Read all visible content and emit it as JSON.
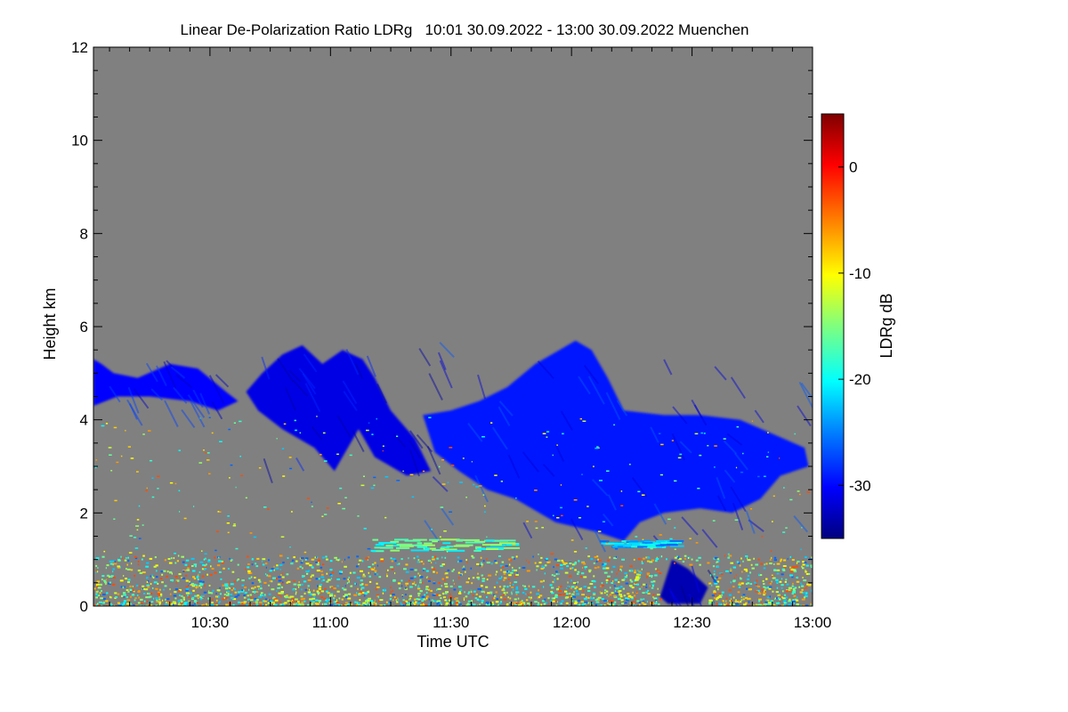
{
  "chart_data": {
    "type": "heatmap",
    "title": "Linear De-Polarization Ratio LDRg   10:01 30.09.2022 - 13:00 30.09.2022 Muenchen",
    "xlabel": "Time UTC",
    "ylabel": "Height km",
    "colorbar_label": "LDRg dB",
    "xlim_minutes": [
      601,
      780
    ],
    "ylim_km": [
      0,
      12
    ],
    "x_ticks": [
      {
        "minutes": 630,
        "label": "10:30"
      },
      {
        "minutes": 660,
        "label": "11:00"
      },
      {
        "minutes": 690,
        "label": "11:30"
      },
      {
        "minutes": 720,
        "label": "12:00"
      },
      {
        "minutes": 750,
        "label": "12:30"
      },
      {
        "minutes": 780,
        "label": "13:00"
      }
    ],
    "y_ticks": [
      {
        "value": 0,
        "label": "0"
      },
      {
        "value": 2,
        "label": "2"
      },
      {
        "value": 4,
        "label": "4"
      },
      {
        "value": 6,
        "label": "6"
      },
      {
        "value": 8,
        "label": "8"
      },
      {
        "value": 10,
        "label": "10"
      },
      {
        "value": 12,
        "label": "12"
      }
    ],
    "colorbar_range_db": [
      -35,
      5
    ],
    "colorbar_ticks": [
      {
        "value": 0,
        "label": "0"
      },
      {
        "value": -10,
        "label": "-10"
      },
      {
        "value": -20,
        "label": "-20"
      },
      {
        "value": -30,
        "label": "-30"
      }
    ],
    "colors": {
      "background": "#808080",
      "colorscale": [
        "#00007f",
        "#0000ff",
        "#007fff",
        "#00ffff",
        "#7fff7f",
        "#ffff00",
        "#ff7f00",
        "#ff0000",
        "#7f0000"
      ]
    },
    "cloud_layers": [
      {
        "name": "upper-layer-1",
        "ldr_db": -30,
        "points": [
          [
            601,
            5.3
          ],
          [
            603,
            5.2
          ],
          [
            606,
            5.0
          ],
          [
            612,
            4.9
          ],
          [
            620,
            5.2
          ],
          [
            627,
            5.1
          ],
          [
            634,
            4.6
          ],
          [
            637,
            4.4
          ],
          [
            632,
            4.2
          ],
          [
            625,
            4.4
          ],
          [
            615,
            4.5
          ],
          [
            607,
            4.5
          ],
          [
            601,
            4.3
          ]
        ]
      },
      {
        "name": "upper-layer-2",
        "ldr_db": -31,
        "points": [
          [
            639,
            4.6
          ],
          [
            643,
            5.0
          ],
          [
            648,
            5.4
          ],
          [
            653,
            5.6
          ],
          [
            658,
            5.2
          ],
          [
            663,
            5.5
          ],
          [
            668,
            5.3
          ],
          [
            671,
            4.9
          ],
          [
            675,
            4.2
          ],
          [
            681,
            3.6
          ],
          [
            685,
            2.9
          ],
          [
            679,
            2.8
          ],
          [
            671,
            3.2
          ],
          [
            667,
            3.8
          ],
          [
            661,
            2.9
          ],
          [
            656,
            3.4
          ],
          [
            648,
            3.8
          ],
          [
            642,
            4.2
          ]
        ]
      },
      {
        "name": "main-layer",
        "ldr_db": -29,
        "points": [
          [
            683,
            4.1
          ],
          [
            690,
            4.2
          ],
          [
            697,
            4.4
          ],
          [
            704,
            4.7
          ],
          [
            711,
            5.2
          ],
          [
            717,
            5.5
          ],
          [
            721,
            5.7
          ],
          [
            725,
            5.5
          ],
          [
            729,
            4.9
          ],
          [
            733,
            4.2
          ],
          [
            743,
            4.1
          ],
          [
            752,
            4.1
          ],
          [
            762,
            4.0
          ],
          [
            770,
            3.7
          ],
          [
            778,
            3.4
          ],
          [
            779,
            3.0
          ],
          [
            772,
            2.8
          ],
          [
            767,
            2.3
          ],
          [
            760,
            2.0
          ],
          [
            752,
            2.1
          ],
          [
            743,
            2.0
          ],
          [
            737,
            1.8
          ],
          [
            733,
            1.4
          ],
          [
            726,
            1.6
          ],
          [
            716,
            1.8
          ],
          [
            706,
            2.3
          ],
          [
            699,
            2.5
          ],
          [
            692,
            2.9
          ],
          [
            686,
            3.3
          ]
        ]
      },
      {
        "name": "low-blue-patch",
        "ldr_db": -33,
        "points": [
          [
            742,
            0.2
          ],
          [
            745,
            1.0
          ],
          [
            749,
            0.8
          ],
          [
            754,
            0.4
          ],
          [
            752,
            0.05
          ],
          [
            744,
            0.05
          ]
        ]
      }
    ],
    "band_features": [
      {
        "name": "boundary-layer-noise",
        "y_range_km": [
          0,
          1.1
        ],
        "density": 0.6
      },
      {
        "name": "aerosol-layer-1.3km",
        "x_range_min": [
          670,
          706
        ],
        "y_range_km": [
          1.2,
          1.45
        ],
        "ldr_db": -17
      },
      {
        "name": "feature-1.4km",
        "x_range_min": [
          727,
          745
        ],
        "y_range_km": [
          1.28,
          1.42
        ],
        "ldr_db": -22
      }
    ]
  }
}
